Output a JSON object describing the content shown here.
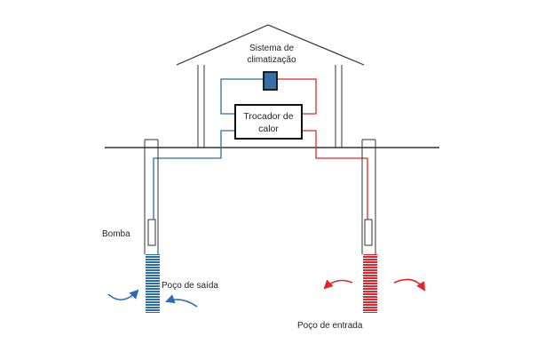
{
  "labels": {
    "climate_system_line1": "Sistema de",
    "climate_system_line2": "climatização",
    "heat_exchanger_line1": "Trocador de",
    "heat_exchanger_line2": "calor",
    "pump": "Bomba",
    "outlet_well": "Poço de saída",
    "inlet_well": "Poço de entrada"
  },
  "colors": {
    "cold": "#2a6db3",
    "hot": "#e8242a",
    "outline": "#333333",
    "unit_fill": "#3b6ea5"
  }
}
